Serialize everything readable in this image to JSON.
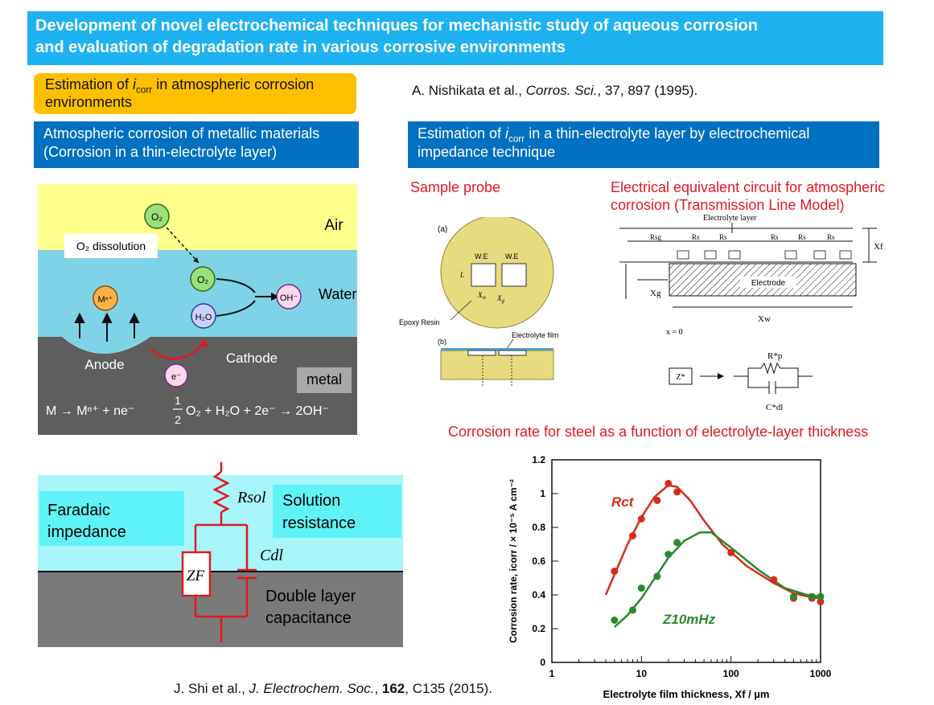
{
  "title": {
    "line1": "Development of novel electrochemical techniques for mechanistic study of aqueous corrosion",
    "line2": "and evaluation of degradation rate in various corrosive environments"
  },
  "estimation_box": {
    "prefix": "Estimation of ",
    "i": "i",
    "sub": "corr",
    "suffix": " in atmospheric corrosion",
    "line2": "environments"
  },
  "ref1": {
    "authors": "A. Nishikata et al., ",
    "journal": "Corros. Sci.",
    "rest": ", 37, 897 (1995)."
  },
  "atm_box": {
    "line1": "Atmospheric corrosion of metallic materials",
    "line2": "(Corrosion in a thin-electrolyte layer)"
  },
  "thin_box": {
    "prefix": "Estimation of ",
    "i": "i",
    "sub": "corr",
    "suffix": " in a thin-electrolyte layer by electrochemical",
    "line2": "impedance technique"
  },
  "sample_probe_label": "Sample probe",
  "circuit_label": {
    "line1": "Electrical equivalent circuit for atmospheric",
    "line2": "corrosion (Transmission Line Model)"
  },
  "corrosion_rate_label": "Corrosion rate for steel as a function of electrolyte-layer thickness",
  "atm_diagram": {
    "air": "Air",
    "o2_dissolution": "O₂ dissolution",
    "water_layer": "Water layer",
    "anode": "Anode",
    "cathode": "Cathode",
    "metal": "metal",
    "o2": "O₂",
    "h2o": "H₂O",
    "mn": "Mⁿ⁺",
    "oh": "OH⁻",
    "e": "e⁻",
    "eq_left": "M → Mⁿ⁺ + ne⁻",
    "eq_half_num": "1",
    "eq_half_den": "2",
    "eq_right": "O₂ + H₂O + 2e⁻ → 2OH⁻"
  },
  "probe": {
    "a": "(a)",
    "b": "(b)",
    "we1": "W.E",
    "we2": "W.E",
    "L": "L",
    "xw": "X",
    "xw_sub": "w",
    "xg": "X",
    "xg_sub": "g",
    "epoxy": "Epoxy Resin",
    "film": "Electrolyte film"
  },
  "tlm": {
    "electrolyte_layer": "Electrolyte layer",
    "rsg": "Rsg",
    "rs": "Rs",
    "xf": "Xf",
    "electrode": "Electrode",
    "xg": "Xg",
    "xw": "Xw",
    "x0": "x = 0",
    "rp": "R*p",
    "z": "Z*",
    "cdl": "C*dl",
    "zstar": "Z*"
  },
  "eq_circuit": {
    "faradaic": "Faradaic",
    "impedance": "impedance",
    "rsol": "Rsol",
    "cdl": "Cdl",
    "zf": "ZF",
    "solution": "Solution",
    "resistance": "resistance",
    "double_layer": "Double layer",
    "capacitance": "capacitance"
  },
  "ref2": {
    "authors": "J. Shi et al., ",
    "journal": "J. Electrochem. Soc.",
    "sep": ", ",
    "vol": "162",
    "rest": ", C135 (2015)."
  },
  "chart_data": {
    "type": "scatter",
    "xscale": "log",
    "xlim": [
      1,
      1000
    ],
    "ylim": [
      0,
      1.2
    ],
    "xticks": [
      "1",
      "10",
      "100",
      "1000"
    ],
    "yticks": [
      "0",
      "0.2",
      "0.4",
      "0.6",
      "0.8",
      "1",
      "1.2"
    ],
    "xlabel": "Electrolyte film thickness, Xf / µm",
    "ylabel": "Corrosion rate, icorr / × 10⁻⁵ A cm⁻²",
    "grid": false,
    "series": [
      {
        "name": "Rct",
        "color": "#d62c1c",
        "points": [
          [
            5,
            0.54
          ],
          [
            8,
            0.75
          ],
          [
            10,
            0.85
          ],
          [
            15,
            0.96
          ],
          [
            20,
            1.06
          ],
          [
            25,
            1.01
          ],
          [
            100,
            0.65
          ],
          [
            300,
            0.49
          ],
          [
            500,
            0.38
          ],
          [
            800,
            0.38
          ],
          [
            1000,
            0.36
          ]
        ],
        "fit": [
          [
            4,
            0.4
          ],
          [
            5,
            0.52
          ],
          [
            7,
            0.7
          ],
          [
            10,
            0.86
          ],
          [
            14,
            0.98
          ],
          [
            20,
            1.05
          ],
          [
            25,
            1.04
          ],
          [
            35,
            0.96
          ],
          [
            50,
            0.84
          ],
          [
            80,
            0.7
          ],
          [
            150,
            0.57
          ],
          [
            300,
            0.47
          ],
          [
            500,
            0.41
          ],
          [
            800,
            0.385
          ],
          [
            1000,
            0.38
          ]
        ]
      },
      {
        "name": "Z10mHz",
        "color": "#2a8a2a",
        "points": [
          [
            5,
            0.25
          ],
          [
            8,
            0.31
          ],
          [
            10,
            0.44
          ],
          [
            15,
            0.51
          ],
          [
            20,
            0.64
          ],
          [
            25,
            0.71
          ],
          [
            1000,
            0.39
          ],
          [
            800,
            0.39
          ],
          [
            500,
            0.39
          ]
        ],
        "fit": [
          [
            5,
            0.21
          ],
          [
            7,
            0.28
          ],
          [
            10,
            0.38
          ],
          [
            15,
            0.52
          ],
          [
            20,
            0.62
          ],
          [
            30,
            0.72
          ],
          [
            45,
            0.77
          ],
          [
            60,
            0.77
          ],
          [
            100,
            0.68
          ],
          [
            200,
            0.55
          ],
          [
            400,
            0.44
          ],
          [
            700,
            0.4
          ],
          [
            1000,
            0.39
          ]
        ]
      }
    ]
  }
}
